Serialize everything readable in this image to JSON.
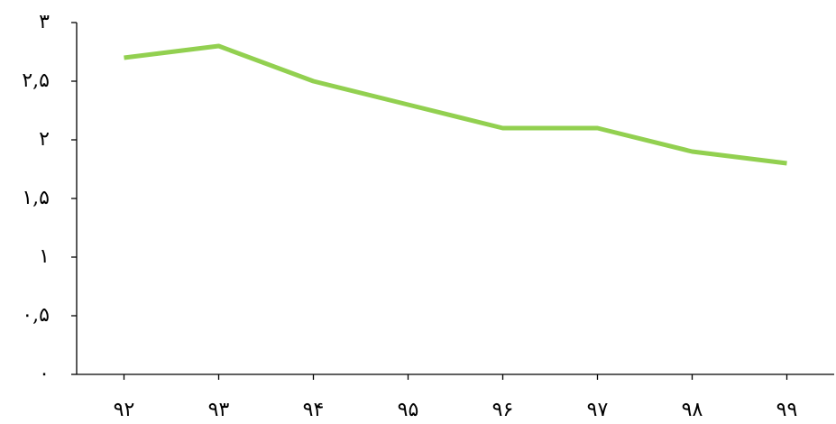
{
  "chart_data": {
    "type": "line",
    "categories": [
      "۹۲",
      "۹۳",
      "۹۴",
      "۹۵",
      "۹۶",
      "۹۷",
      "۹۸",
      "۹۹"
    ],
    "series": [
      {
        "color": "#92d050",
        "values": [
          2.7,
          2.8,
          2.5,
          2.3,
          2.1,
          2.1,
          1.9,
          1.8
        ]
      }
    ],
    "ylim": [
      0,
      3
    ],
    "yticks": [
      {
        "value": 0,
        "label": "۰"
      },
      {
        "value": 0.5,
        "label": "۰,۵"
      },
      {
        "value": 1,
        "label": "۱"
      },
      {
        "value": 1.5,
        "label": "۱,۵"
      },
      {
        "value": 2,
        "label": "۲"
      },
      {
        "value": 2.5,
        "label": "۲,۵"
      },
      {
        "value": 3,
        "label": "۳"
      }
    ],
    "grid": false
  }
}
